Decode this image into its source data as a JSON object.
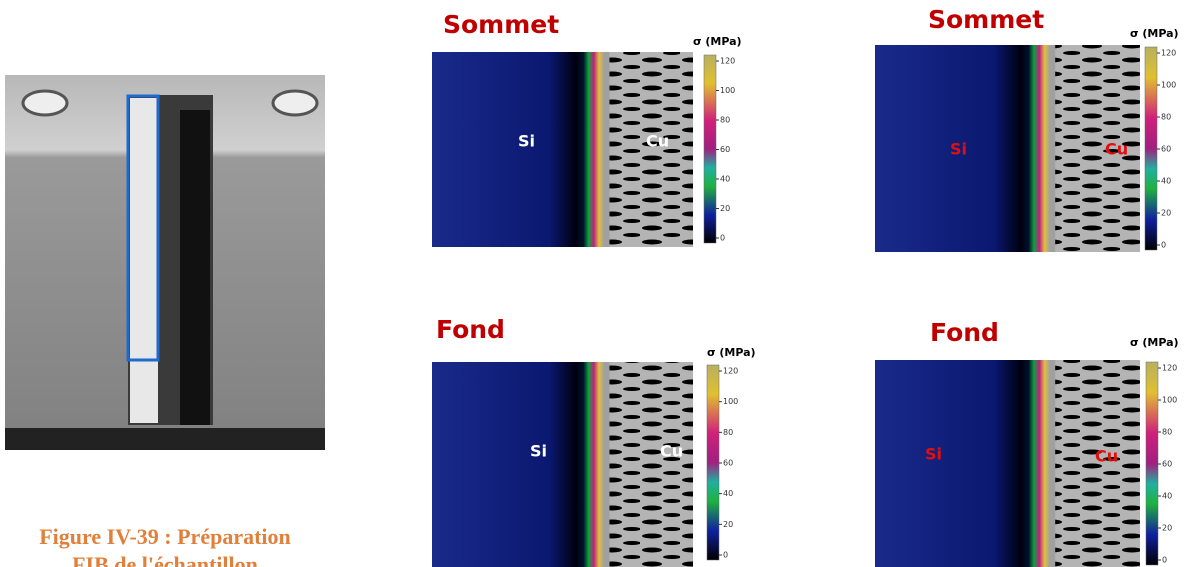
{
  "caption": [
    "Figure IV-39 : Préparation",
    "FIB de l'échantillon"
  ],
  "panels": [
    {
      "title": "Sommet",
      "unit": "σ (MPa)",
      "colorbar_ticks": [
        120,
        100,
        80,
        60,
        40,
        20,
        0
      ],
      "left_label": "Si",
      "right_label": "Cu"
    },
    {
      "title": "Sommet",
      "unit": "σ (MPa)",
      "colorbar_ticks": [
        120,
        100,
        80,
        60,
        40,
        20,
        0
      ],
      "left_label": "Si",
      "right_label": "Cu"
    },
    {
      "title": "Fond",
      "unit": "σ (MPa)",
      "colorbar_ticks": [
        120,
        100,
        80,
        60,
        40,
        20,
        0
      ],
      "left_label": "Si",
      "right_label": "Cu"
    },
    {
      "title": "Fond",
      "unit": "σ (MPa)",
      "colorbar_ticks": [
        120,
        100,
        80,
        60,
        40,
        20,
        0
      ],
      "left_label": "Si",
      "right_label": "Cu"
    }
  ]
}
